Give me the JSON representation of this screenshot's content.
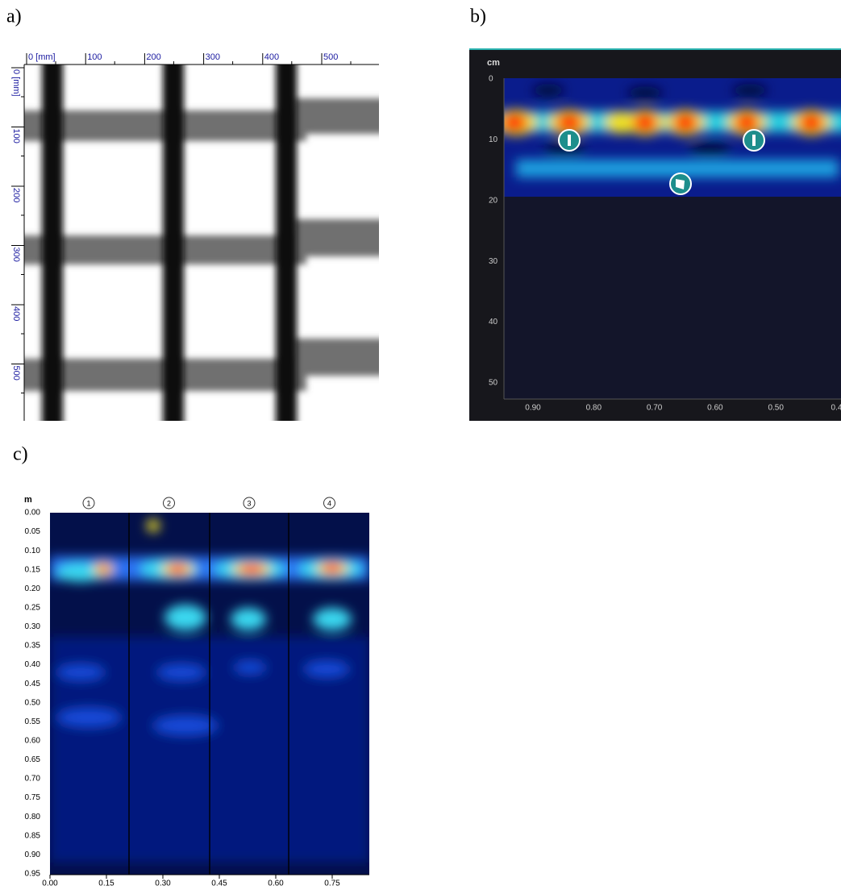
{
  "panels": {
    "a": {
      "label": "a)",
      "x_ticks": [
        "0 [mm]",
        "100",
        "200",
        "300",
        "400",
        "500"
      ],
      "y_ticks": [
        "0 [mm]",
        "100",
        "200",
        "300",
        "400",
        "500"
      ]
    },
    "b": {
      "label": "b)",
      "unit": "cm",
      "y_ticks": [
        "0",
        "10",
        "20",
        "30",
        "40",
        "50"
      ],
      "x_ticks": [
        "0.90",
        "0.80",
        "0.70",
        "0.60",
        "0.50",
        "0.4"
      ]
    },
    "c": {
      "label": "c)",
      "unit": "m",
      "columns": [
        "1",
        "2",
        "3",
        "4"
      ],
      "y_ticks": [
        "0.00",
        "0.05",
        "0.10",
        "0.15",
        "0.20",
        "0.25",
        "0.30",
        "0.35",
        "0.40",
        "0.45",
        "0.50",
        "0.55",
        "0.60",
        "0.65",
        "0.70",
        "0.75",
        "0.80",
        "0.85",
        "0.90",
        "0.95"
      ],
      "x_ticks": [
        "0.00",
        "0.15",
        "0.30",
        "0.45",
        "0.60",
        "0.75"
      ]
    }
  }
}
